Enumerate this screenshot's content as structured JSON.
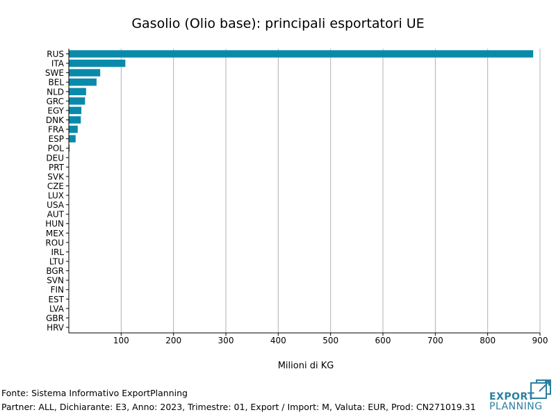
{
  "chart_data": {
    "type": "bar",
    "orientation": "horizontal",
    "title": "Gasolio (Olio base): principali esportatori UE",
    "xlabel": "Milioni di KG",
    "ylabel": "",
    "xlim": [
      0,
      900
    ],
    "xticks": [
      "100",
      "200",
      "300",
      "400",
      "500",
      "600",
      "700",
      "800",
      "900"
    ],
    "grid": true,
    "bar_color": "#0a8aab",
    "categories": [
      "RUS",
      "ITA",
      "SWE",
      "BEL",
      "NLD",
      "GRC",
      "EGY",
      "DNK",
      "FRA",
      "ESP",
      "POL",
      "DEU",
      "PRT",
      "SVK",
      "CZE",
      "LUX",
      "USA",
      "AUT",
      "HUN",
      "MEX",
      "ROU",
      "IRL",
      "LTU",
      "BGR",
      "SVN",
      "FIN",
      "EST",
      "LVA",
      "GBR",
      "HRV"
    ],
    "values": [
      887,
      108,
      60,
      53,
      33,
      31,
      24,
      23,
      17,
      13,
      1.5,
      0.3,
      0.2,
      0.1,
      0.1,
      0.05,
      0.05,
      0.05,
      0.03,
      0.03,
      0.02,
      0.02,
      0.01,
      0.01,
      0.01,
      0.01,
      0.01,
      0.005,
      0.005,
      0.005
    ]
  },
  "footer": {
    "source": "Fonte: Sistema Informativo ExportPlanning",
    "details": "Partner: ALL, Dichiarante: E3, Anno: 2023, Trimestre: 01, Export / Import: M, Valuta: EUR, Prod: CN271019.31"
  },
  "logo": {
    "line1": "EXPORT",
    "line2": "PLANNING",
    "color": "#2a7fa0"
  }
}
